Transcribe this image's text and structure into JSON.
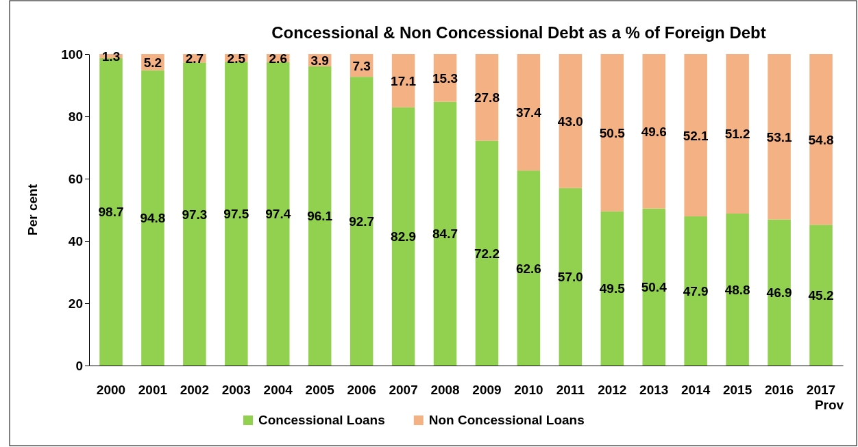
{
  "chart_data": {
    "type": "bar",
    "title": "Concessional & Non Concessional Debt as a % of Foreign Debt",
    "ylabel": "Per cent",
    "categories": [
      "2000",
      "2001",
      "2002",
      "2003",
      "2004",
      "2005",
      "2006",
      "2007",
      "2008",
      "2009",
      "2010",
      "2011",
      "2012",
      "2013",
      "2014",
      "2015",
      "2016",
      "2017 Prov"
    ],
    "stacked": true,
    "legend": "bottom",
    "ylim": [
      0,
      100
    ],
    "yticks": [
      0,
      20,
      40,
      60,
      80,
      100
    ],
    "series": [
      {
        "name": "Concessional Loans",
        "color": "#92d050",
        "values": [
          98.7,
          94.8,
          97.3,
          97.5,
          97.4,
          96.1,
          92.7,
          82.9,
          84.7,
          72.2,
          62.6,
          57.0,
          49.5,
          50.4,
          47.9,
          48.8,
          46.9,
          45.2
        ],
        "value_labels": [
          "98.7",
          "94.8",
          "97.3",
          "97.5",
          "97.4",
          "96.1",
          "92.7",
          "82.9",
          "84.7",
          "72.2",
          "62.6",
          "57.0",
          "49.5",
          "50.4",
          "47.9",
          "48.8",
          "46.9",
          "45.2"
        ]
      },
      {
        "name": "Non Concessional Loans",
        "color": "#f4b183",
        "values": [
          1.3,
          5.2,
          2.7,
          2.5,
          2.6,
          3.9,
          7.3,
          17.1,
          15.3,
          27.8,
          37.4,
          43.0,
          50.5,
          49.6,
          52.1,
          51.2,
          53.1,
          54.8
        ],
        "value_labels": [
          "1.3",
          "5.2",
          "2.7",
          "2.5",
          "2.6",
          "3.9",
          "7.3",
          "17.1",
          "15.3",
          "27.8",
          "37.4",
          "43.0",
          "50.5",
          "49.6",
          "52.1",
          "51.2",
          "53.1",
          "54.8"
        ]
      }
    ]
  }
}
